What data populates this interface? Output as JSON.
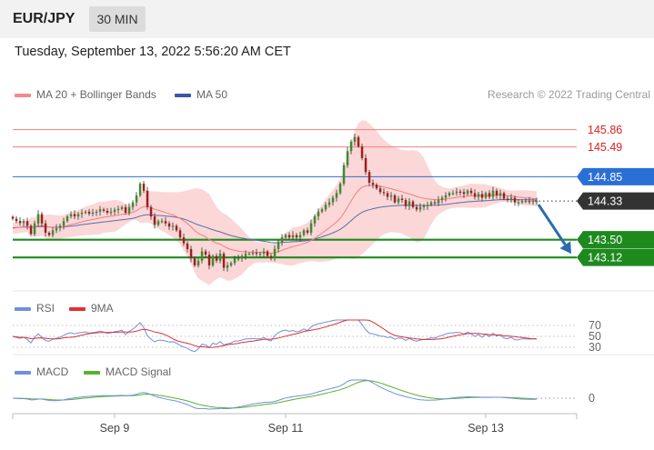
{
  "header": {
    "symbol": "EUR/JPY",
    "timeframe": "30 MIN"
  },
  "datetime": "Tuesday, September 13, 2022 5:56:20 AM CET",
  "legend": {
    "ma20_bb": "MA 20 + Bollinger Bands",
    "ma50": "MA 50",
    "credit": "Research © 2022 Trading Central",
    "rsi": "RSI",
    "rsi_ma": "9MA",
    "macd": "MACD",
    "macd_signal": "MACD Signal"
  },
  "colors": {
    "candle_up": "#3a8c2e",
    "candle_down": "#a01e1e",
    "bb_fill": "#f9c9c9",
    "ma20": "#f07f7f",
    "ma50": "#5a6fa8",
    "resistance": "#f08080",
    "pivot": "#2a6fd6",
    "support": "#1e8a1e",
    "current": "#333333",
    "arrow": "#2a6aad",
    "rsi": "#6f8fe0",
    "rsi_ma": "#e03030",
    "macd": "#6f8fe0",
    "macd_signal": "#5ab02e"
  },
  "chart_data": {
    "type": "candlestick",
    "ylim": [
      142.5,
      146.3
    ],
    "levels": [
      {
        "name": "resistance-2",
        "value": 145.86,
        "label": "145.86",
        "kind": "resistance"
      },
      {
        "name": "resistance-1",
        "value": 145.49,
        "label": "145.49",
        "kind": "resistance"
      },
      {
        "name": "pivot",
        "value": 144.85,
        "label": "144.85",
        "kind": "pivot"
      },
      {
        "name": "current-price",
        "value": 144.33,
        "label": "144.33",
        "kind": "current"
      },
      {
        "name": "support-1",
        "value": 143.5,
        "label": "143.50",
        "kind": "support"
      },
      {
        "name": "support-2",
        "value": 143.12,
        "label": "143.12",
        "kind": "support"
      }
    ],
    "x_ticks": [
      {
        "label": "Sep 9",
        "index": 28
      },
      {
        "label": "Sep 11",
        "index": 75
      },
      {
        "label": "Sep 13",
        "index": 130
      }
    ],
    "candles_count": 145,
    "close": [
      143.95,
      143.9,
      143.86,
      143.9,
      143.8,
      143.62,
      143.85,
      144.05,
      143.85,
      143.65,
      143.6,
      143.7,
      143.75,
      143.8,
      143.9,
      144.0,
      144.05,
      144.0,
      144.05,
      144.08,
      144.1,
      144.06,
      144.08,
      144.1,
      144.15,
      144.12,
      144.08,
      144.1,
      144.14,
      144.16,
      144.2,
      144.08,
      144.2,
      144.3,
      144.45,
      144.7,
      144.55,
      144.2,
      144.0,
      143.82,
      143.9,
      143.9,
      143.85,
      143.78,
      143.8,
      143.7,
      143.55,
      143.42,
      143.3,
      143.1,
      142.95,
      143.05,
      143.25,
      143.18,
      142.95,
      143.15,
      143.05,
      143.2,
      142.9,
      142.95,
      143.0,
      143.1,
      143.1,
      143.15,
      143.2,
      143.2,
      143.22,
      143.2,
      143.2,
      143.25,
      143.15,
      143.1,
      143.3,
      143.45,
      143.55,
      143.6,
      143.55,
      143.6,
      143.55,
      143.6,
      143.7,
      143.65,
      143.85,
      144.0,
      144.1,
      144.15,
      144.25,
      144.3,
      144.4,
      144.5,
      144.7,
      145.1,
      145.4,
      145.6,
      145.7,
      145.5,
      145.25,
      144.95,
      144.72,
      144.68,
      144.6,
      144.52,
      144.5,
      144.42,
      144.45,
      144.3,
      144.38,
      144.35,
      144.22,
      144.32,
      144.2,
      144.15,
      144.2,
      144.22,
      144.25,
      144.3,
      144.28,
      144.35,
      144.4,
      144.45,
      144.5,
      144.5,
      144.53,
      144.52,
      144.48,
      144.55,
      144.5,
      144.42,
      144.48,
      144.4,
      144.5,
      144.42,
      144.55,
      144.45,
      144.5,
      144.38,
      144.35,
      144.4,
      144.3,
      144.3,
      144.33,
      144.33,
      144.32,
      144.33,
      144.33
    ],
    "ma20_start": 143.72,
    "ma50_start": 143.75,
    "projection": {
      "from_index": 144,
      "from": 144.33,
      "to": 143.12
    },
    "rsi": {
      "levels": [
        30,
        50,
        70
      ],
      "ylim": [
        20,
        80
      ]
    },
    "macd": {
      "zero_label": "0",
      "ylim": [
        -0.45,
        0.45
      ]
    }
  }
}
